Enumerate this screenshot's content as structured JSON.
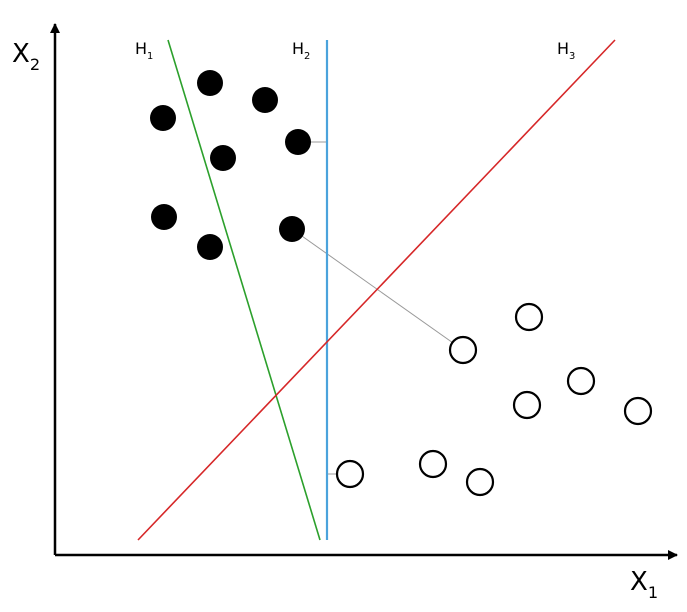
{
  "axes": {
    "x_label": {
      "text": "X",
      "sub": "1"
    },
    "y_label": {
      "text": "X",
      "sub": "2"
    }
  },
  "hyperplanes": [
    {
      "label": {
        "text": "H",
        "sub": "1"
      }
    },
    {
      "label": {
        "text": "H",
        "sub": "2"
      }
    },
    {
      "label": {
        "text": "H",
        "sub": "3"
      }
    }
  ]
}
